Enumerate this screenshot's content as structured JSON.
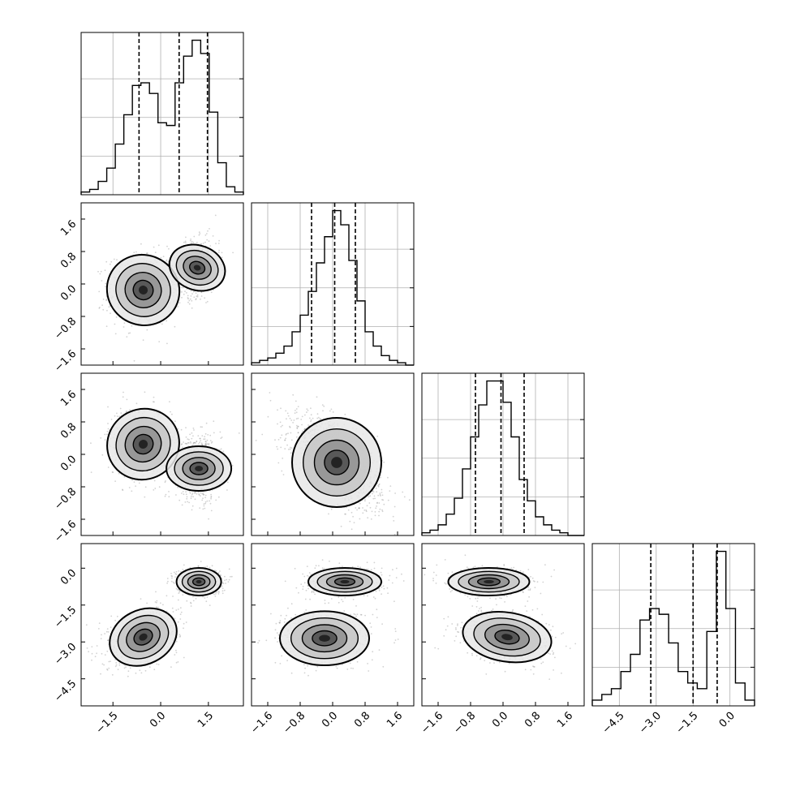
{
  "chart_data": {
    "type": "corner",
    "grid": true,
    "colors": {
      "line": "#000000",
      "grid": "#b0b0b0",
      "scatter": "#7f7f7f",
      "density_shades": [
        "#e8e8e8",
        "#c6c6c6",
        "#8f8f8f",
        "#4d4d4d",
        "#1a1a1a"
      ]
    },
    "variables": [
      {
        "range": [
          -2.5,
          2.6
        ],
        "ticks": [
          -1.5,
          0.0,
          1.5
        ],
        "tick_labels": [
          "−1.5",
          "0.0",
          "1.5"
        ]
      },
      {
        "range": [
          -2.0,
          2.0
        ],
        "ticks": [
          -1.6,
          -0.8,
          0.0,
          0.8,
          1.6
        ],
        "tick_labels": [
          "−1.6",
          "−0.8",
          "0.0",
          "0.8",
          "1.6"
        ]
      },
      {
        "range": [
          -2.0,
          2.0
        ],
        "ticks": [
          -1.6,
          -0.8,
          0.0,
          0.8,
          1.6
        ],
        "tick_labels": [
          "−1.6",
          "−0.8",
          "0.0",
          "0.8",
          "1.6"
        ]
      },
      {
        "range": [
          -5.6,
          1.0
        ],
        "ticks": [
          -4.5,
          -3.0,
          -1.5,
          0.0
        ],
        "tick_labels": [
          "−4.5",
          "−3.0",
          "−1.5",
          "0.0"
        ]
      }
    ],
    "histograms": [
      {
        "var": 0,
        "quantiles": [
          -0.68,
          0.58,
          1.47
        ],
        "counts": [
          1,
          2,
          5,
          10,
          19,
          30,
          41,
          42,
          38,
          27,
          26,
          42,
          52,
          58,
          53,
          31,
          12,
          3,
          1
        ]
      },
      {
        "var": 1,
        "quantiles": [
          -0.52,
          0.05,
          0.56
        ],
        "counts": [
          1,
          2,
          3,
          5,
          8,
          14,
          21,
          31,
          43,
          54,
          65,
          59,
          44,
          27,
          14,
          8,
          4,
          2,
          1,
          0
        ]
      },
      {
        "var": 2,
        "quantiles": [
          -0.68,
          -0.05,
          0.52
        ],
        "counts": [
          1,
          2,
          4,
          8,
          14,
          25,
          37,
          49,
          58,
          58,
          50,
          37,
          21,
          13,
          7,
          4,
          2,
          1,
          0,
          0
        ]
      },
      {
        "var": 3,
        "quantiles": [
          -3.22,
          -1.5,
          -0.52
        ],
        "counts": [
          1,
          2,
          3,
          6,
          9,
          15,
          17,
          16,
          11,
          6,
          4,
          3,
          13,
          27,
          17,
          4,
          1
        ]
      }
    ],
    "scatter_panels": [
      {
        "x_var": 0,
        "y_var": 1,
        "clusters": [
          {
            "mean": [
              -0.55,
              -0.15
            ],
            "sd": [
              0.55,
              0.45
            ],
            "rho": 0.05,
            "weight": 0.5
          },
          {
            "mean": [
              1.15,
              0.4
            ],
            "sd": [
              0.35,
              0.35
            ],
            "rho": 0.2,
            "weight": 0.5
          }
        ]
      },
      {
        "x_var": 0,
        "y_var": 2,
        "clusters": [
          {
            "mean": [
              -0.55,
              0.25
            ],
            "sd": [
              0.55,
              0.45
            ],
            "rho": -0.1,
            "weight": 0.5
          },
          {
            "mean": [
              1.2,
              -0.35
            ],
            "sd": [
              0.35,
              0.4
            ],
            "rho": 0.0,
            "weight": 0.5
          }
        ]
      },
      {
        "x_var": 1,
        "y_var": 2,
        "clusters": [
          {
            "mean": [
              0.1,
              -0.2
            ],
            "sd": [
              0.55,
              0.55
            ],
            "rho": -0.6,
            "weight": 1.0
          }
        ]
      },
      {
        "x_var": 0,
        "y_var": 3,
        "clusters": [
          {
            "mean": [
              -0.55,
              -2.8
            ],
            "sd": [
              0.55,
              0.55
            ],
            "rho": 0.35,
            "weight": 0.55
          },
          {
            "mean": [
              1.2,
              -0.55
            ],
            "sd": [
              0.35,
              0.28
            ],
            "rho": 0.0,
            "weight": 0.45
          }
        ]
      },
      {
        "x_var": 1,
        "y_var": 3,
        "clusters": [
          {
            "mean": [
              -0.2,
              -2.85
            ],
            "sd": [
              0.55,
              0.55
            ],
            "rho": 0.0,
            "weight": 0.55
          },
          {
            "mean": [
              0.3,
              -0.55
            ],
            "sd": [
              0.45,
              0.28
            ],
            "rho": 0.0,
            "weight": 0.45
          }
        ]
      },
      {
        "x_var": 2,
        "y_var": 3,
        "clusters": [
          {
            "mean": [
              0.1,
              -2.8
            ],
            "sd": [
              0.55,
              0.5
            ],
            "rho": -0.2,
            "weight": 0.55
          },
          {
            "mean": [
              -0.35,
              -0.55
            ],
            "sd": [
              0.5,
              0.28
            ],
            "rho": 0.0,
            "weight": 0.45
          }
        ]
      }
    ]
  }
}
